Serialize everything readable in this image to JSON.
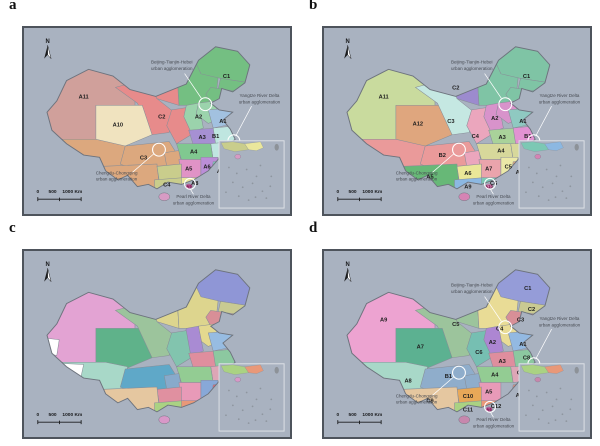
{
  "figure": {
    "description": "Four map panels of China regionalization schemes",
    "panel_letters": [
      "a",
      "b",
      "c",
      "d"
    ]
  },
  "map_common": {
    "background": "#a9b2c0",
    "frame_color": "#4e545c",
    "border_color": "#878d97",
    "outline_color": "#6d737d",
    "taiwan_color": "#8d9298",
    "annotation_text_color": "#474b52",
    "leader_color": "#ffffff",
    "north_label": "N",
    "scale_labels": [
      "0",
      "500",
      "1000 Km"
    ],
    "annotations": [
      {
        "name": "beijing-tianjin-hebei",
        "lines": [
          "Beijing-Tianjin-Hebei",
          "urban agglomeration"
        ],
        "text": [
          150,
          36
        ],
        "leader": [
          163,
          46,
          180,
          71
        ],
        "circle": [
          184,
          77,
          6.5
        ]
      },
      {
        "name": "yangtze-river-delta",
        "lines": [
          "Yangtze River Delta",
          "urban agglomeration"
        ],
        "text": [
          239,
          70
        ],
        "leader": [
          231,
          79,
          215,
          109
        ],
        "circle": [
          213,
          114,
          6
        ]
      },
      {
        "name": "chengdu-chongqing",
        "lines": [
          "Chengdu-Chongqing",
          "urban agglomeration"
        ],
        "text": [
          94,
          148
        ],
        "leader": [
          110,
          146,
          132,
          127
        ],
        "circle": [
          137,
          123,
          6.5
        ]
      },
      {
        "name": "pearl-river-delta",
        "lines": [
          "Pearl River Delta",
          "urban agglomeration"
        ],
        "text": [
          172,
          172
        ],
        "leader": [
          172,
          168,
          169,
          163
        ],
        "circle": [
          168.5,
          157.5,
          5.5
        ]
      }
    ]
  },
  "panels": [
    {
      "letter": "a",
      "show_annotations": true,
      "hainan_color": "#d79bc4",
      "inset_colors": {
        "coast1": "#c9cd8c",
        "coast2": "#eae79c",
        "hainan": "#d79bc4"
      },
      "delta_dot": {
        "label": "A9",
        "color": "#c05f9e"
      },
      "regions": [
        {
          "label": "C1",
          "color": "#74bf82",
          "cells": [
            "NMGe",
            "HLJ",
            "JL",
            "LN"
          ],
          "label_at": [
            161,
            40
          ]
        },
        {
          "label": "A11",
          "color": "#d0a09b",
          "cells": [
            "XJ"
          ],
          "label_at": [
            44,
            58
          ]
        },
        {
          "label": "C2",
          "color": "#e78b8b",
          "cells": [
            "GS",
            "NMGw",
            "SNX"
          ],
          "label_at": [
            108,
            76
          ]
        },
        {
          "label": "C3",
          "color": "#dca87e",
          "cells": [
            "XZ",
            "SC",
            "CQ",
            "YN"
          ],
          "label_at": [
            93,
            112
          ]
        },
        {
          "label": "A10",
          "color": "#f0e3bf",
          "cells": [
            "QH"
          ],
          "label_at": [
            72,
            83
          ]
        },
        {
          "label": "A2",
          "color": "#9bd3ac",
          "cells": [
            "SX",
            "JJJ"
          ],
          "label_at": [
            138,
            76
          ]
        },
        {
          "label": "A1",
          "color": "#a2c1e0",
          "cells": [
            "SD"
          ],
          "label_at": [
            158,
            80
          ]
        },
        {
          "label": "A3",
          "color": "#a690d3",
          "cells": [
            "HEN"
          ],
          "label_at": [
            141,
            94
          ]
        },
        {
          "label": "B1",
          "color": "#bfe6e0",
          "cells": [
            "JS",
            "AH"
          ],
          "label_at": [
            152,
            93
          ]
        },
        {
          "label": "A4",
          "color": "#80c890",
          "cells": [
            "HUB"
          ],
          "label_at": [
            134,
            107
          ]
        },
        {
          "label": "A5",
          "color": "#e093c6",
          "cells": [
            "HUN"
          ],
          "label_at": [
            130,
            122
          ]
        },
        {
          "label": "A6",
          "color": "#bb8ed8",
          "cells": [
            "JX"
          ],
          "label_at": [
            145,
            120
          ]
        },
        {
          "label": "A7",
          "color": "#7ecfc0",
          "cells": [
            "SHZ",
            "FJ"
          ],
          "label_at": [
            156,
            124
          ]
        },
        {
          "label": "C4",
          "color": "#c9cd8c",
          "cells": [
            "GZ",
            "GX"
          ],
          "label_at": [
            112,
            136
          ]
        },
        {
          "label": "A8",
          "color": "#eae79c",
          "cells": [
            "GD"
          ],
          "label_at": [
            135,
            135
          ]
        }
      ]
    },
    {
      "letter": "b",
      "show_annotations": true,
      "hainan_color": "#d584b4",
      "inset_colors": {
        "coast1": "#7cc8b4",
        "coast2": "#8cb8e2",
        "hainan": "#d584b4"
      },
      "delta_dot": {
        "label": "A10",
        "color": "#d584b4"
      },
      "regions": [
        {
          "label": "C1",
          "color": "#7fc4a5",
          "cells": [
            "NMGe",
            "HLJ",
            "JL",
            "LN"
          ],
          "label_at": [
            161,
            40
          ]
        },
        {
          "label": "A11",
          "color": "#c9db9e",
          "cells": [
            "XJ"
          ],
          "label_at": [
            44,
            58
          ]
        },
        {
          "label": "C2",
          "color": "#9c8bce",
          "cells": [
            "NMGw"
          ],
          "label_at": [
            103,
            50
          ]
        },
        {
          "label": "B2",
          "color": "#ea9a9a",
          "cells": [
            "XZ",
            "SC"
          ],
          "label_at": [
            92,
            110
          ]
        },
        {
          "label": "A12",
          "color": "#dfa67e",
          "cells": [
            "QH"
          ],
          "label_at": [
            72,
            82
          ]
        },
        {
          "label": "C3",
          "color": "#c5e8e2",
          "cells": [
            "GS"
          ],
          "label_at": [
            99,
            80
          ]
        },
        {
          "label": "C4",
          "color": "#eba6bd",
          "cells": [
            "SNX",
            "CQ"
          ],
          "label_at": [
            119,
            93
          ]
        },
        {
          "label": "A2",
          "color": "#d893cb",
          "cells": [
            "SX",
            "JJJ"
          ],
          "label_at": [
            135,
            77
          ]
        },
        {
          "label": "A1",
          "color": "#8fc9c1",
          "cells": [
            "SD"
          ],
          "label_at": [
            158,
            80
          ]
        },
        {
          "label": "A3",
          "color": "#a9d29a",
          "cells": [
            "HEN"
          ],
          "label_at": [
            141,
            94
          ]
        },
        {
          "label": "A4",
          "color": "#d7d89b",
          "cells": [
            "HUB",
            "AH"
          ],
          "label_at": [
            140,
            106
          ]
        },
        {
          "label": "B1",
          "color": "#e292d2",
          "cells": [
            "JS",
            "SHZ"
          ],
          "label_at": [
            162,
            93
          ]
        },
        {
          "label": "A7",
          "color": "#eaa4ac",
          "cells": [
            "HUN"
          ],
          "label_at": [
            130,
            122
          ]
        },
        {
          "label": "C5",
          "color": "#ece9a7",
          "cells": [
            "JX"
          ],
          "label_at": [
            146,
            120
          ]
        },
        {
          "label": "A8",
          "color": "#e2a87c",
          "cells": [
            "FJ"
          ],
          "label_at": [
            155,
            125
          ]
        },
        {
          "label": "A5",
          "color": "#67b877",
          "cells": [
            "YN"
          ],
          "label_at": [
            82,
            129
          ]
        },
        {
          "label": "A6",
          "color": "#eae798",
          "cells": [
            "GZ"
          ],
          "label_at": [
            113,
            126
          ]
        },
        {
          "label": "A9",
          "color": "#8cb8e2",
          "cells": [
            "GX"
          ],
          "label_at": [
            113,
            138
          ]
        },
        {
          "label": "C6",
          "color": "#7cc8b4",
          "cells": [
            "GD"
          ],
          "label_at": [
            134,
            135
          ]
        }
      ]
    },
    {
      "letter": "c",
      "show_annotations": false,
      "hainan_color": "#d898c8",
      "inset_colors": {
        "coast1": "#aad283",
        "coast2": "#e99878",
        "hainan": "#d898c8"
      },
      "regions": [
        {
          "color": "#e3a3d3",
          "cells": [
            "XJ"
          ]
        },
        {
          "color": "#ddd58e",
          "cells": [
            "NMGw",
            "NMGe"
          ]
        },
        {
          "color": "#8f96d6",
          "cells": [
            "HLJ"
          ]
        },
        {
          "color": "#c9ca92",
          "cells": [
            "JL"
          ]
        },
        {
          "color": "#d88f97",
          "cells": [
            "LN"
          ]
        },
        {
          "color": "#e4d98f",
          "cells": [
            "JJJ"
          ]
        },
        {
          "color": "#5fb28a",
          "cells": [
            "QH"
          ]
        },
        {
          "color": "#9cc49c",
          "cells": [
            "GS"
          ]
        },
        {
          "color": "#a98bd3",
          "cells": [
            "SX"
          ]
        },
        {
          "color": "#97bce2",
          "cells": [
            "SD"
          ]
        },
        {
          "color": "#82c4ae",
          "cells": [
            "SNX"
          ]
        },
        {
          "color": "#df8e9e",
          "cells": [
            "HEN"
          ]
        },
        {
          "color": "#8cc8a0",
          "cells": [
            "JS"
          ]
        },
        {
          "color": "#dda6b6",
          "cells": [
            "AH"
          ]
        },
        {
          "color": "#c6e2d8",
          "cells": [
            "SHZ"
          ]
        },
        {
          "color": "#93cc93",
          "cells": [
            "HUB"
          ]
        },
        {
          "color": "#a8d8c8",
          "cells": [
            "XZ"
          ]
        },
        {
          "color": "#5fa8c8",
          "cells": [
            "SC"
          ]
        },
        {
          "color": "#88aacb",
          "cells": [
            "CQ"
          ]
        },
        {
          "color": "#e89ab8",
          "cells": [
            "HUN"
          ]
        },
        {
          "color": "#88a8d8",
          "cells": [
            "JX"
          ]
        },
        {
          "color": "#e06878",
          "cells": [
            "FJ"
          ]
        },
        {
          "color": "#e090a0",
          "cells": [
            "GZ"
          ]
        },
        {
          "color": "#e5c7a0",
          "cells": [
            "YN"
          ]
        },
        {
          "color": "#aad283",
          "cells": [
            "GX"
          ]
        },
        {
          "color": "#e99878",
          "cells": [
            "GD"
          ]
        },
        {
          "color": "#ffffff",
          "cells": [
            "XZW"
          ]
        },
        {
          "color": "#ffffff",
          "cells": [
            "KSM"
          ]
        }
      ]
    },
    {
      "letter": "d",
      "show_annotations": true,
      "hainan_color": "#c787ad",
      "inset_colors": {
        "coast1": "#aad283",
        "coast2": "#e99878",
        "hainan": "#c787ad"
      },
      "delta_dot": {
        "label": "A6",
        "color": "#c05f9e"
      },
      "regions": [
        {
          "label": "A9",
          "color": "#eda3d1",
          "cells": [
            "XJ"
          ],
          "label_at": [
            44,
            58
          ]
        },
        {
          "label": "C5",
          "color": "#9cc49c",
          "cells": [
            "NMGw",
            "GS"
          ],
          "label_at": [
            103,
            62
          ]
        },
        {
          "label": "C4",
          "color": "#e9dc96",
          "cells": [
            "NMGe",
            "JJJ"
          ],
          "label_at": [
            139,
            66
          ]
        },
        {
          "label": "C1",
          "color": "#959cd8",
          "cells": [
            "HLJ"
          ],
          "label_at": [
            162,
            30
          ]
        },
        {
          "label": "C2",
          "color": "#c9ca92",
          "cells": [
            "JL"
          ],
          "label_at": [
            165,
            49
          ]
        },
        {
          "label": "C3",
          "color": "#d88f97",
          "cells": [
            "LN"
          ],
          "label_at": [
            156,
            58
          ]
        },
        {
          "label": "A7",
          "color": "#5cb191",
          "cells": [
            "QH"
          ],
          "label_at": [
            74,
            82
          ]
        },
        {
          "label": "A8",
          "color": "#a8d8c8",
          "cells": [
            "XZ"
          ],
          "label_at": [
            64,
            112
          ]
        },
        {
          "label": "B1",
          "color": "#8fadcb",
          "cells": [
            "SC",
            "CQ"
          ],
          "label_at": [
            97,
            108
          ]
        },
        {
          "label": "C6",
          "color": "#76bfb2",
          "cells": [
            "SNX"
          ],
          "label_at": [
            122,
            87
          ]
        },
        {
          "label": "A2",
          "color": "#ad86d2",
          "cells": [
            "SX"
          ],
          "label_at": [
            133,
            78
          ]
        },
        {
          "label": "A1",
          "color": "#93b9e2",
          "cells": [
            "SD"
          ],
          "label_at": [
            158,
            80
          ]
        },
        {
          "label": "A3",
          "color": "#df8e9e",
          "cells": [
            "HEN"
          ],
          "label_at": [
            141,
            95
          ]
        },
        {
          "label": "A4",
          "color": "#93cc93",
          "cells": [
            "HUB"
          ],
          "label_at": [
            135,
            107
          ]
        },
        {
          "label": "C7",
          "color": "#dda6b6",
          "cells": [
            "AH"
          ],
          "label_at": [
            156,
            105
          ]
        },
        {
          "label": "C8",
          "color": "#8cc8a0",
          "cells": [
            "JS"
          ],
          "label_at": [
            161,
            92
          ]
        },
        {
          "label": "C13",
          "color": "#c6e2d8",
          "cells": [
            "SHZ"
          ],
          "label_at": [
            161,
            113
          ]
        },
        {
          "label": "A5",
          "color": "#e89ab8",
          "cells": [
            "HUN"
          ],
          "label_at": [
            130,
            122
          ]
        },
        {
          "label": "C10",
          "color": "#e8a858",
          "cells": [
            "GZ"
          ],
          "label_at": [
            113,
            126
          ]
        },
        {
          "label": "C9",
          "color": "#e5c7a0",
          "cells": [
            "YN"
          ],
          "label_at": [
            82,
            130
          ]
        },
        {
          "label": "C11",
          "color": "#aad283",
          "cells": [
            "GX"
          ],
          "label_at": [
            113,
            138
          ]
        },
        {
          "label": "C12",
          "color": "#e99878",
          "cells": [
            "GD"
          ],
          "label_at": [
            136,
            135
          ]
        },
        {
          "label": "A7",
          "color": "#de8d80",
          "cells": [
            "FJ"
          ],
          "label_at": [
            155,
            125
          ]
        }
      ]
    }
  ]
}
